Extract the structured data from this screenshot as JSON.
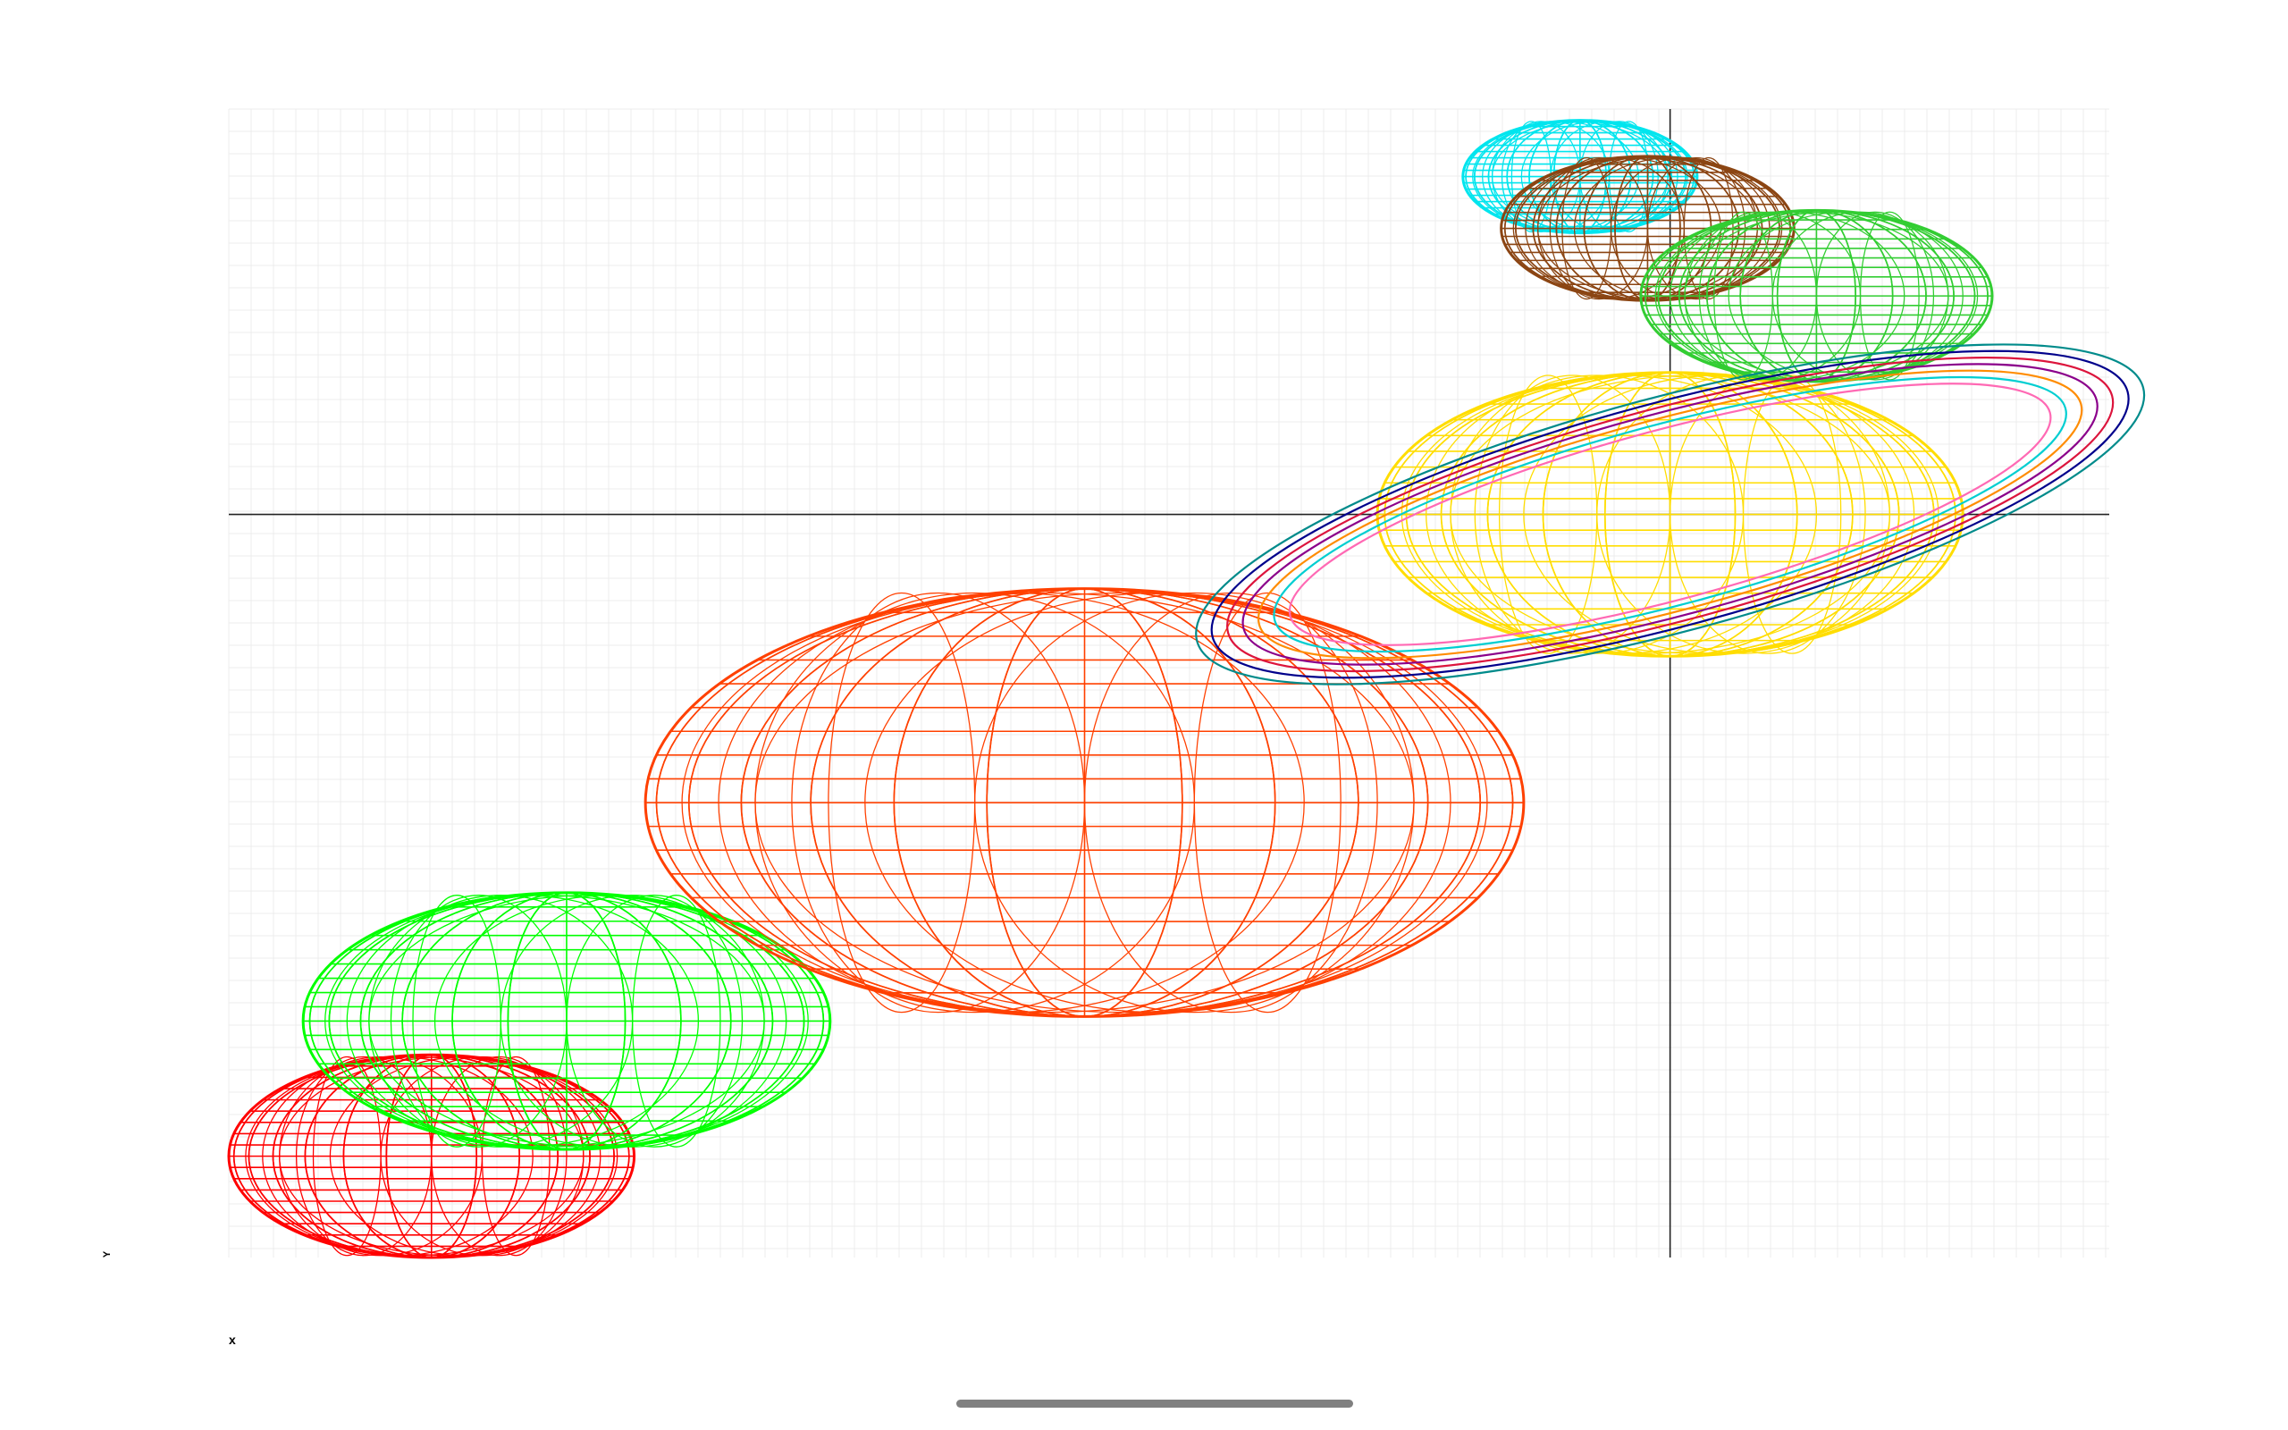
{
  "chart_data": {
    "type": "other",
    "description_free": true,
    "xlabel": "x",
    "ylabel": "Y",
    "grid": true,
    "axes_crossing": {
      "x": 0,
      "y": 0
    },
    "xlim": [
      -6.4,
      1.95
    ],
    "ylim": [
      -3.3,
      1.8
    ],
    "planets": [
      {
        "color": "#ff0000",
        "cx": -5.5,
        "cy": -2.85,
        "rx": 0.9,
        "ry": 0.45
      },
      {
        "color": "#00ff00",
        "cx": -4.9,
        "cy": -2.25,
        "rx": 1.17,
        "ry": 0.57
      },
      {
        "color": "#ff4000",
        "cx": -2.6,
        "cy": -1.28,
        "rx": 1.95,
        "ry": 0.95
      },
      {
        "color": "#ffdd00",
        "cx": 0.0,
        "cy": 0.0,
        "rx": 1.3,
        "ry": 0.63
      },
      {
        "color": "#00e5ee",
        "cx": -0.4,
        "cy": 1.5,
        "rx": 0.52,
        "ry": 0.25
      },
      {
        "color": "#8b4513",
        "cx": -0.1,
        "cy": 1.27,
        "rx": 0.65,
        "ry": 0.32
      },
      {
        "color": "#32cd32",
        "cx": 0.65,
        "cy": 0.97,
        "rx": 0.78,
        "ry": 0.38
      }
    ],
    "rings": {
      "center": {
        "x": 0.0,
        "y": 0.0
      },
      "tilt_degrees": 15,
      "colors": [
        "#ff69b4",
        "#00ced1",
        "#ff8c00",
        "#8b008b",
        "#dc143c",
        "#00008b",
        "#008b8b"
      ]
    }
  },
  "labels": {
    "x_axis": "x",
    "y_axis": "Y"
  },
  "colors": {
    "background": "#ffffff",
    "grid": "#ececec",
    "axis": "#222222",
    "home_indicator": "#808080"
  }
}
